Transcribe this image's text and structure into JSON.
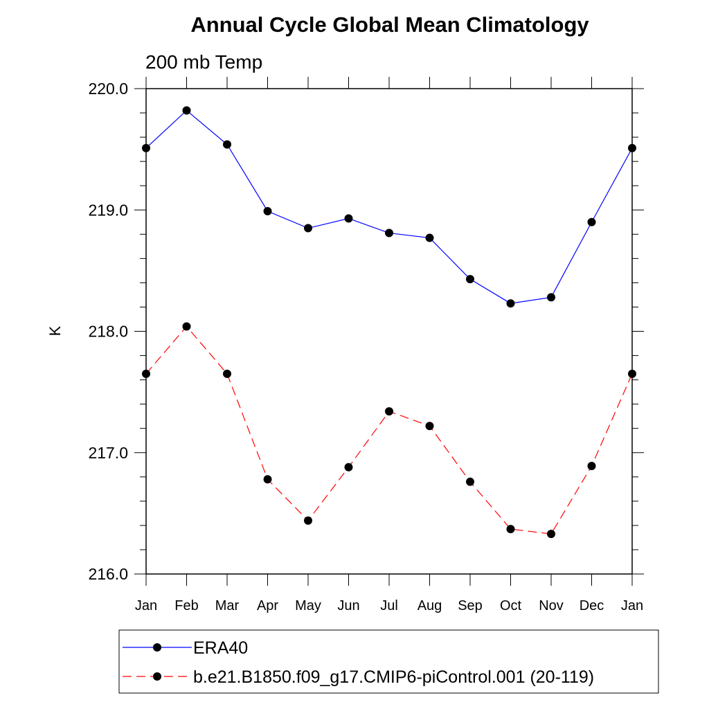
{
  "chart_data": {
    "type": "line",
    "title": "Annual Cycle Global Mean Climatology",
    "subtitle": "200 mb Temp",
    "xlabel": "",
    "ylabel": "K",
    "categories": [
      "Jan",
      "Feb",
      "Mar",
      "Apr",
      "May",
      "Jun",
      "Jul",
      "Aug",
      "Sep",
      "Oct",
      "Nov",
      "Dec",
      "Jan"
    ],
    "ylim": [
      216.0,
      220.0
    ],
    "yticks": [
      216.0,
      217.0,
      218.0,
      219.0,
      220.0
    ],
    "ytick_labels": [
      "216.0",
      "217.0",
      "218.0",
      "219.0",
      "220.0"
    ],
    "grid": false,
    "legend_position": "bottom",
    "series": [
      {
        "name": "ERA40",
        "color": "#0000ff",
        "dash": "solid",
        "marker": "filled-circle",
        "values": [
          219.51,
          219.82,
          219.54,
          218.99,
          218.85,
          218.93,
          218.81,
          218.77,
          218.43,
          218.23,
          218.28,
          218.9,
          219.51
        ]
      },
      {
        "name": "b.e21.B1850.f09_g17.CMIP6-piControl.001 (20-119)",
        "color": "#ff0000",
        "dash": "dashed",
        "marker": "filled-circle",
        "values": [
          217.65,
          218.04,
          217.65,
          216.78,
          216.44,
          216.88,
          217.34,
          217.22,
          216.76,
          216.37,
          216.33,
          216.89,
          217.65
        ]
      }
    ]
  }
}
